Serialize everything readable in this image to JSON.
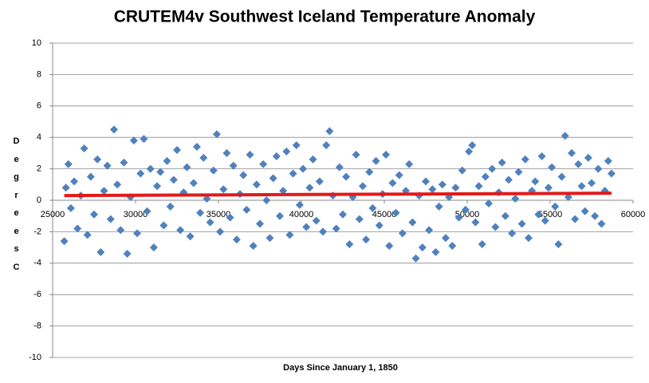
{
  "chart_data": {
    "type": "scatter",
    "title": "CRUTEM4v Southwest Iceland Temperature Anomaly",
    "x_label": "Days Since January 1, 1850",
    "y_label": "Degrees C",
    "xlim": [
      25000,
      60000
    ],
    "xticks": [
      25000,
      30000,
      35000,
      40000,
      45000,
      50000,
      55000,
      60000
    ],
    "ylim": [
      -10,
      10
    ],
    "yticks": [
      -10,
      -8,
      -6,
      -4,
      -2,
      0,
      2,
      4,
      6,
      8,
      10
    ],
    "grid": true,
    "series": [
      {
        "color": "#4f81bd",
        "x": [
          25700,
          25800,
          25950,
          26100,
          26300,
          26500,
          26700,
          26900,
          27100,
          27300,
          27500,
          27700,
          27900,
          28100,
          28300,
          28500,
          28700,
          28900,
          29100,
          29300,
          29500,
          29700,
          29900,
          30100,
          30300,
          30500,
          30700,
          30900,
          31100,
          31300,
          31500,
          31700,
          31900,
          32100,
          32300,
          32500,
          32700,
          32900,
          33100,
          33300,
          33500,
          33700,
          33900,
          34100,
          34300,
          34500,
          34700,
          34900,
          35100,
          35300,
          35500,
          35700,
          35900,
          36100,
          36300,
          36500,
          36700,
          36900,
          37100,
          37300,
          37500,
          37700,
          37900,
          38100,
          38300,
          38500,
          38700,
          38900,
          39100,
          39300,
          39500,
          39700,
          39900,
          40100,
          40300,
          40500,
          40700,
          40900,
          41100,
          41300,
          41500,
          41700,
          41900,
          42100,
          42300,
          42500,
          42700,
          42900,
          43100,
          43300,
          43500,
          43700,
          43900,
          44100,
          44300,
          44500,
          44700,
          44900,
          45100,
          45300,
          45500,
          45700,
          45900,
          46100,
          46300,
          46500,
          46700,
          46900,
          47100,
          47300,
          47500,
          47700,
          47900,
          48100,
          48300,
          48500,
          48700,
          48900,
          49100,
          49300,
          49500,
          49700,
          49900,
          50100,
          50300,
          50500,
          50700,
          50900,
          51100,
          51300,
          51500,
          51700,
          51900,
          52100,
          52300,
          52500,
          52700,
          52900,
          53100,
          53300,
          53500,
          53700,
          53900,
          54100,
          54300,
          54500,
          54700,
          54900,
          55100,
          55300,
          55500,
          55700,
          55900,
          56100,
          56300,
          56500,
          56700,
          56900,
          57100,
          57300,
          57500,
          57700,
          57900,
          58100,
          58300,
          58500,
          58700
        ],
        "values": [
          -2.6,
          0.8,
          2.3,
          -0.5,
          1.2,
          -1.8,
          0.3,
          3.3,
          -2.2,
          1.5,
          -0.9,
          2.6,
          -3.3,
          0.6,
          2.2,
          -1.2,
          4.5,
          1.0,
          -1.9,
          2.4,
          -3.4,
          0.2,
          3.8,
          -2.1,
          1.7,
          3.9,
          -0.7,
          2.0,
          -3.0,
          0.9,
          1.8,
          -1.6,
          2.5,
          -0.4,
          1.3,
          3.2,
          -1.9,
          0.5,
          2.1,
          -2.3,
          1.1,
          3.4,
          -0.8,
          2.7,
          0.1,
          -1.4,
          1.9,
          4.2,
          -2.0,
          0.7,
          3.0,
          -1.1,
          2.2,
          -2.5,
          0.4,
          1.6,
          -0.6,
          2.9,
          -2.9,
          1.0,
          -1.5,
          2.3,
          0.0,
          -2.4,
          1.4,
          2.8,
          -1.0,
          0.6,
          3.1,
          -2.2,
          1.7,
          3.5,
          -0.3,
          2.0,
          -1.7,
          0.8,
          2.6,
          -1.3,
          1.2,
          -2.0,
          3.5,
          4.4,
          0.3,
          -1.8,
          2.1,
          -0.9,
          1.5,
          -2.8,
          0.2,
          2.9,
          -1.2,
          0.9,
          -2.5,
          1.8,
          -0.5,
          2.5,
          -1.6,
          0.4,
          2.9,
          -2.9,
          1.1,
          -0.8,
          1.6,
          -2.1,
          0.6,
          2.3,
          -1.4,
          -3.7,
          0.3,
          -3.0,
          1.2,
          -1.9,
          0.7,
          -3.3,
          -0.4,
          1.0,
          -2.4,
          0.2,
          -2.9,
          0.8,
          -1.1,
          1.9,
          -0.6,
          3.1,
          3.5,
          -1.4,
          0.9,
          -2.8,
          1.5,
          -0.2,
          2.0,
          -1.7,
          0.5,
          2.4,
          -1.0,
          1.3,
          -2.1,
          0.1,
          1.8,
          -1.5,
          2.6,
          -2.4,
          0.6,
          1.2,
          -0.9,
          2.8,
          -1.3,
          0.8,
          2.1,
          -0.4,
          -2.8,
          1.5,
          4.1,
          0.2,
          3.0,
          -1.2,
          2.3,
          0.9,
          -0.7,
          2.7,
          1.1,
          -1.0,
          2.0,
          -1.5,
          0.6,
          2.5,
          1.7
        ]
      },
      {
        "type": "line",
        "color": "#e3191b",
        "x": [
          25700,
          58700
        ],
        "values": [
          0.3,
          0.45
        ]
      }
    ]
  }
}
